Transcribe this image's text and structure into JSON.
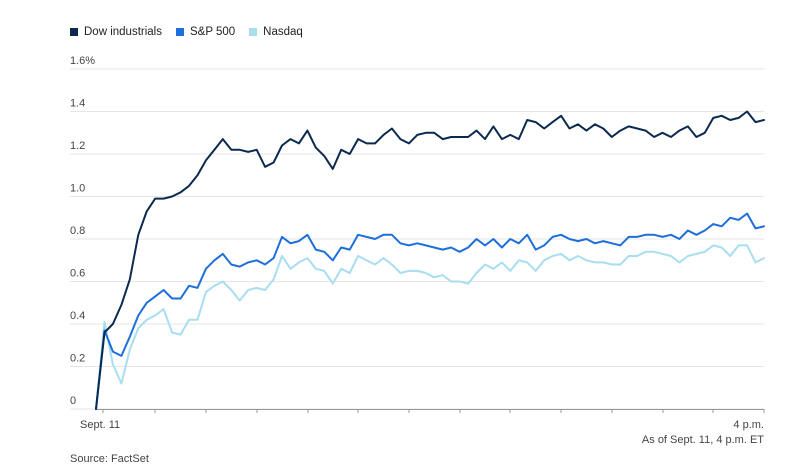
{
  "chart_data": {
    "type": "line",
    "title": "",
    "xlabel": "",
    "ylabel": "",
    "x_tick_labels": [
      "Sept. 11",
      "4 p.m."
    ],
    "ylim": [
      0,
      1.6
    ],
    "y_ticks": [
      {
        "value": 0,
        "label": "0"
      },
      {
        "value": 0.2,
        "label": "0.2"
      },
      {
        "value": 0.4,
        "label": "0.4"
      },
      {
        "value": 0.6,
        "label": "0.6"
      },
      {
        "value": 0.8,
        "label": "0.8"
      },
      {
        "value": 1.0,
        "label": "1.0"
      },
      {
        "value": 1.2,
        "label": "1.2"
      },
      {
        "value": 1.4,
        "label": "1.4"
      },
      {
        "value": 1.6,
        "label": "1.6%"
      }
    ],
    "grid": true,
    "legend": "top-left",
    "series": [
      {
        "name": "Dow industrials",
        "color": "#0b2a4f",
        "values": [
          0.0,
          0.36,
          0.4,
          0.49,
          0.61,
          0.82,
          0.93,
          0.99,
          0.99,
          1.0,
          1.02,
          1.05,
          1.1,
          1.17,
          1.22,
          1.27,
          1.22,
          1.22,
          1.21,
          1.22,
          1.14,
          1.16,
          1.24,
          1.27,
          1.25,
          1.31,
          1.23,
          1.19,
          1.13,
          1.22,
          1.2,
          1.27,
          1.25,
          1.25,
          1.29,
          1.32,
          1.27,
          1.25,
          1.29,
          1.3,
          1.3,
          1.27,
          1.28,
          1.28,
          1.28,
          1.31,
          1.27,
          1.33,
          1.27,
          1.29,
          1.27,
          1.36,
          1.35,
          1.32,
          1.35,
          1.38,
          1.32,
          1.34,
          1.31,
          1.34,
          1.32,
          1.28,
          1.31,
          1.33,
          1.32,
          1.31,
          1.28,
          1.3,
          1.28,
          1.31,
          1.33,
          1.28,
          1.3,
          1.37,
          1.38,
          1.36,
          1.37,
          1.4,
          1.35,
          1.36
        ]
      },
      {
        "name": "S&P 500",
        "color": "#1e6fd9",
        "values": [
          0.0,
          0.37,
          0.27,
          0.25,
          0.34,
          0.44,
          0.5,
          0.53,
          0.56,
          0.52,
          0.52,
          0.58,
          0.57,
          0.66,
          0.7,
          0.73,
          0.68,
          0.67,
          0.69,
          0.7,
          0.68,
          0.71,
          0.81,
          0.78,
          0.79,
          0.82,
          0.75,
          0.74,
          0.7,
          0.76,
          0.75,
          0.82,
          0.81,
          0.8,
          0.82,
          0.82,
          0.78,
          0.77,
          0.78,
          0.77,
          0.76,
          0.75,
          0.76,
          0.74,
          0.76,
          0.8,
          0.77,
          0.8,
          0.76,
          0.8,
          0.78,
          0.82,
          0.75,
          0.77,
          0.81,
          0.82,
          0.8,
          0.79,
          0.8,
          0.78,
          0.79,
          0.78,
          0.77,
          0.81,
          0.81,
          0.82,
          0.82,
          0.81,
          0.82,
          0.8,
          0.84,
          0.82,
          0.84,
          0.87,
          0.86,
          0.9,
          0.89,
          0.92,
          0.85,
          0.86
        ]
      },
      {
        "name": "Nasdaq",
        "color": "#a8def0",
        "values": [
          0.0,
          0.41,
          0.21,
          0.12,
          0.28,
          0.38,
          0.42,
          0.44,
          0.47,
          0.36,
          0.35,
          0.42,
          0.42,
          0.55,
          0.58,
          0.6,
          0.56,
          0.51,
          0.56,
          0.57,
          0.56,
          0.61,
          0.72,
          0.66,
          0.69,
          0.71,
          0.66,
          0.65,
          0.59,
          0.66,
          0.64,
          0.72,
          0.7,
          0.68,
          0.71,
          0.68,
          0.64,
          0.65,
          0.65,
          0.64,
          0.62,
          0.63,
          0.6,
          0.6,
          0.59,
          0.64,
          0.68,
          0.66,
          0.69,
          0.65,
          0.7,
          0.69,
          0.65,
          0.7,
          0.72,
          0.73,
          0.7,
          0.72,
          0.7,
          0.69,
          0.69,
          0.68,
          0.68,
          0.72,
          0.72,
          0.74,
          0.74,
          0.73,
          0.72,
          0.69,
          0.72,
          0.73,
          0.74,
          0.77,
          0.76,
          0.72,
          0.77,
          0.77,
          0.69,
          0.71
        ]
      }
    ]
  },
  "notes": {
    "timestamp": "As of Sept. 11, 4 p.m. ET",
    "source": "Source: FactSet"
  }
}
